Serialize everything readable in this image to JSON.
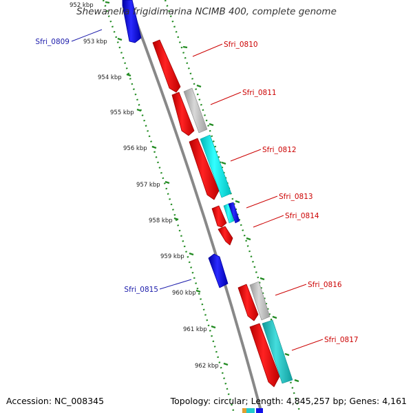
{
  "title": "Shewanella frigidimarina NCIMB 400, complete genome",
  "footer": {
    "accession": "Accession: NC_008345",
    "summary": "Topology: circular; Length: 4,845,257 bp; Genes: 4,161"
  },
  "colors": {
    "strand_red": "#ee0000",
    "strand_blue": "#1010e8",
    "gray": "#c0c0c0",
    "cyan": "#00e8e8",
    "teal": "#22cccc",
    "backbone": "#888888",
    "ticks": "#228b22",
    "label_red": "#cc0000",
    "label_blue": "#1a1aaa"
  },
  "scale_labels": [
    "952 kbp",
    "953 kbp",
    "954 kbp",
    "955 kbp",
    "956 kbp",
    "957 kbp",
    "958 kbp",
    "959 kbp",
    "960 kbp",
    "961 kbp",
    "962 kbp"
  ],
  "gene_labels": [
    {
      "text": "Sfri_0809",
      "color": "blue"
    },
    {
      "text": "Sfri_0810",
      "color": "red"
    },
    {
      "text": "Sfri_0811",
      "color": "red"
    },
    {
      "text": "Sfri_0812",
      "color": "red"
    },
    {
      "text": "Sfri_0813",
      "color": "red"
    },
    {
      "text": "Sfri_0814",
      "color": "red"
    },
    {
      "text": "Sfri_0815",
      "color": "blue"
    },
    {
      "text": "Sfri_0816",
      "color": "red"
    },
    {
      "text": "Sfri_0817",
      "color": "red"
    }
  ]
}
